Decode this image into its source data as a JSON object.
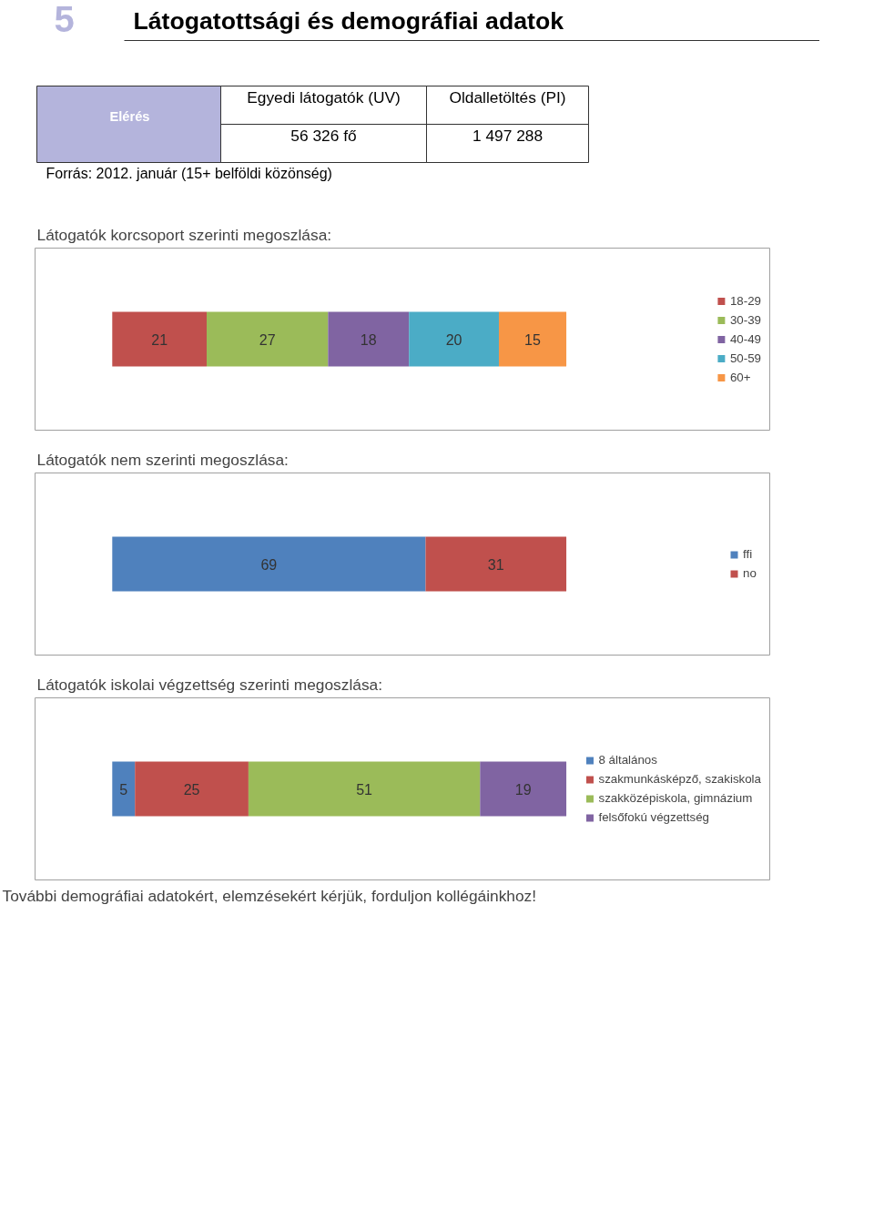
{
  "chart_data": [
    {
      "type": "other",
      "title": "Látogatottsági és demográfiai adatok",
      "annotations": [
        "5",
        "Elérés",
        "Egyedi látogatók (UV)",
        "Oldalletöltés (PI)",
        "56 326 fő",
        "1 497 288",
        "Forrás: 2012. január (15+ belföldi közönség)"
      ]
    },
    {
      "type": "bar",
      "orientation": "horizontal",
      "stacked": true,
      "title": "Látogatók korcsoport szerinti megoszlása:",
      "categories": [
        null
      ],
      "data_labels": true,
      "legend": "right",
      "tick_labels": false,
      "series": [
        {
          "name": "18-29",
          "color": "#c0504d",
          "values": [
            21
          ]
        },
        {
          "name": "30-39",
          "color": "#9bbb59",
          "values": [
            27
          ]
        },
        {
          "name": "40-49",
          "color": "#8064a2",
          "values": [
            18
          ]
        },
        {
          "name": "50-59",
          "color": "#4bacc6",
          "values": [
            20
          ]
        },
        {
          "name": "60+",
          "color": "#f79646",
          "values": [
            15
          ]
        }
      ]
    },
    {
      "type": "bar",
      "orientation": "horizontal",
      "stacked": true,
      "title": "Látogatók nem szerinti megoszlása:",
      "categories": [
        null
      ],
      "data_labels": true,
      "legend": "right",
      "tick_labels": false,
      "series": [
        {
          "name": "ffi",
          "color": "#4f81bd",
          "values": [
            69
          ]
        },
        {
          "name": "no",
          "color": "#c0504d",
          "values": [
            31
          ]
        }
      ]
    },
    {
      "type": "bar",
      "orientation": "horizontal",
      "stacked": true,
      "title": "Látogatók iskolai végzettség szerinti megoszlása:",
      "categories": [
        null
      ],
      "data_labels": true,
      "legend": "right",
      "tick_labels": false,
      "annotations": [
        "További demográfiai adatokért, elemzésekért kérjük, forduljon kollégáinkhoz!"
      ],
      "series": [
        {
          "name": "8 általános",
          "color": "#4f81bd",
          "values": [
            5
          ]
        },
        {
          "name": "szakmunkásképző, szakiskola",
          "color": "#c0504d",
          "values": [
            25
          ]
        },
        {
          "name": "szakközépiskola, gimnázium",
          "color": "#9bbb59",
          "values": [
            51
          ]
        },
        {
          "name": "felsőfokú végzettség",
          "color": "#8064a2",
          "values": [
            19
          ]
        }
      ]
    }
  ]
}
